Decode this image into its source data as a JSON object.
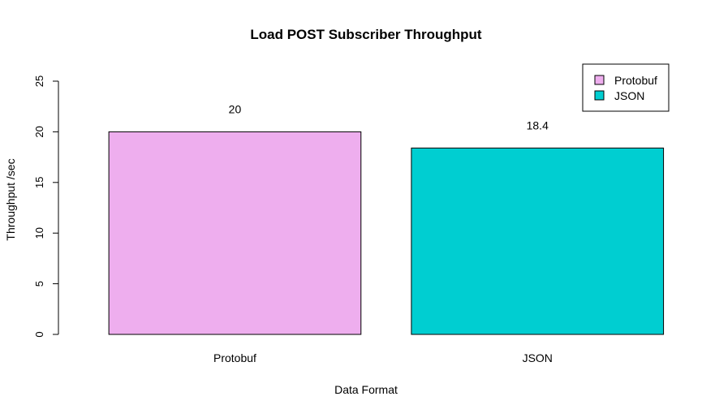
{
  "chart_data": {
    "type": "bar",
    "title": "Load POST Subscriber Throughput",
    "xlabel": "Data Format",
    "ylabel": "Throughput /sec",
    "categories": [
      "Protobuf",
      "JSON"
    ],
    "values": [
      20,
      18.4
    ],
    "value_labels": [
      "20",
      "18.4"
    ],
    "colors": [
      "#EEAEEE",
      "#00CED1"
    ],
    "ylim": [
      0,
      25
    ],
    "yticks": [
      "0",
      "5",
      "10",
      "15",
      "20",
      "25"
    ],
    "grid": false,
    "legend": {
      "position": "top-right",
      "entries": [
        "Protobuf",
        "JSON"
      ]
    }
  }
}
